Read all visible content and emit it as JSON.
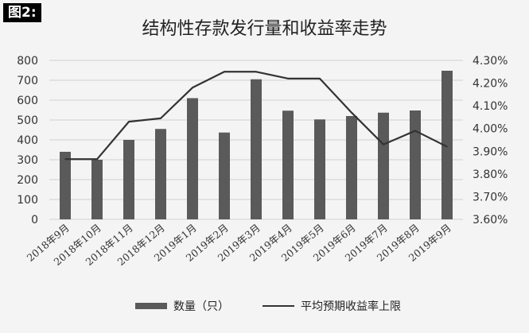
{
  "figure_label": "图2:",
  "chart_data": {
    "type": "bar",
    "title": "结构性存款发行量和收益率走势",
    "categories": [
      "2018年9月",
      "2018年10月",
      "2018年11月",
      "2018年12月",
      "2019年1月",
      "2019年2月",
      "2019年3月",
      "2019年4月",
      "2019年5月",
      "2019年6月",
      "2019年7月",
      "2019年8月",
      "2019年9月"
    ],
    "series": [
      {
        "name": "数量（只）",
        "type": "bar",
        "axis": "left",
        "color": "#5a5a5a",
        "values": [
          340,
          300,
          400,
          455,
          610,
          437,
          705,
          547,
          503,
          520,
          537,
          548,
          748
        ]
      },
      {
        "name": "平均预期收益率上限",
        "type": "line",
        "axis": "right",
        "color": "#333333",
        "values": [
          3.865,
          3.865,
          4.03,
          4.045,
          4.18,
          4.25,
          4.25,
          4.22,
          4.22,
          4.07,
          3.93,
          3.99,
          3.92
        ]
      }
    ],
    "ylim": [
      0,
      800
    ],
    "y_ticks": [
      "0",
      "100",
      "200",
      "300",
      "400",
      "500",
      "600",
      "700",
      "800"
    ],
    "y2lim": [
      3.6,
      4.3
    ],
    "y2_ticks": [
      "3.60%",
      "3.70%",
      "3.80%",
      "3.90%",
      "4.00%",
      "4.10%",
      "4.20%",
      "4.30%"
    ],
    "grid": true,
    "legend": "bottom"
  }
}
